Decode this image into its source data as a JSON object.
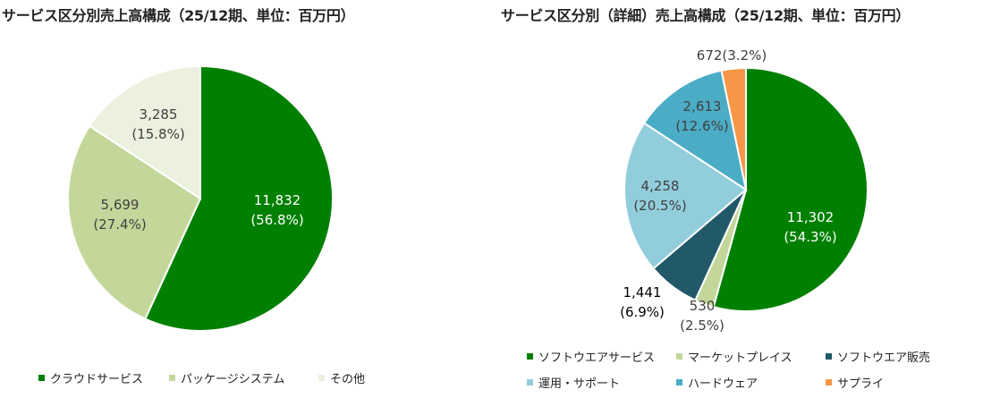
{
  "chart_data": [
    {
      "type": "pie",
      "title": "サービス区分別売上高構成（25/12期、単位：百万円）",
      "categories": [
        "クラウドサービス",
        "パッケージシステム",
        "その他"
      ],
      "values": [
        11832,
        5699,
        3285
      ],
      "value_labels": [
        "11,832",
        "5,699",
        "3,285"
      ],
      "percent_labels": [
        "(56.8%)",
        "(27.4%)",
        "(15.8%)"
      ],
      "colors": [
        "#008000",
        "#c4d79b",
        "#ebf1de"
      ],
      "legend": "bottom"
    },
    {
      "type": "pie",
      "title": "サービス区分別（詳細）売上高構成（25/12期、単位：百万円）",
      "categories": [
        "ソフトウエアサービス",
        "マーケットプレイス",
        "ソフトウエア販売",
        "運用・サポート",
        "ハードウェア",
        "サプライ"
      ],
      "values": [
        11302,
        530,
        1441,
        4258,
        2613,
        672
      ],
      "value_labels": [
        "11,302",
        "530",
        "1,441",
        "4,258",
        "2,613",
        "672"
      ],
      "percent_labels": [
        "(54.3%)",
        "(2.5%)",
        "(6.9%)",
        "(20.5%)",
        "(12.6%)",
        "(3.2%)"
      ],
      "colors": [
        "#008000",
        "#c4d79b",
        "#215968",
        "#92cddc",
        "#4bacc6",
        "#f79646"
      ],
      "legend": "bottom"
    }
  ]
}
